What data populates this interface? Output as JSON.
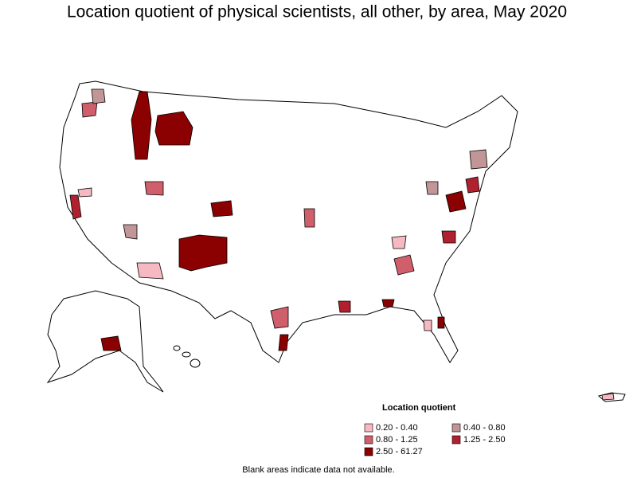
{
  "title": "Location quotient of physical scientists, all other, by area, May 2020",
  "legend": {
    "title": "Location quotient",
    "items": [
      {
        "label": "0.20 - 0.40",
        "color": "#f7b9c1"
      },
      {
        "label": "0.40 - 0.80",
        "color": "#c29696"
      },
      {
        "label": "0.80 - 1.25",
        "color": "#d05f6c"
      },
      {
        "label": "1.25 - 2.50",
        "color": "#b0202e"
      },
      {
        "label": "2.50 - 61.27",
        "color": "#8b0000"
      }
    ]
  },
  "note": "Blank areas indicate data not available."
}
